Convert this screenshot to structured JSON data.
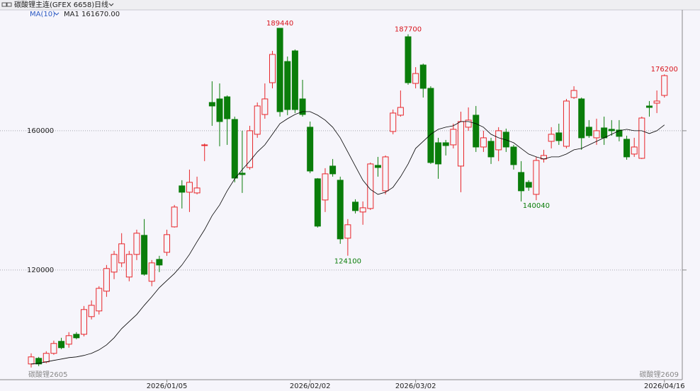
{
  "chart_data": {
    "type": "candlestick",
    "title": "碳酸锂主连(GFEX 6658)",
    "period": "日线",
    "indicator": "MA(10)",
    "indicator_value": "MA1 161670.00",
    "left_contract": "碳酸锂2605",
    "right_contract": "碳酸锂2609",
    "categories": [
      null,
      null,
      null,
      null,
      null,
      null,
      null,
      null,
      null,
      null,
      null,
      null,
      null,
      null,
      null,
      null,
      null,
      null,
      "2026/01/05",
      null,
      null,
      null,
      null,
      null,
      null,
      null,
      null,
      null,
      null,
      null,
      null,
      null,
      null,
      null,
      null,
      null,
      null,
      "2026/02/02",
      null,
      null,
      null,
      null,
      null,
      null,
      null,
      null,
      null,
      null,
      null,
      null,
      null,
      "2026/03/02",
      null,
      null,
      null,
      null,
      null,
      null,
      null,
      null,
      null,
      null,
      null,
      null,
      null,
      null,
      null,
      null,
      null,
      null,
      null,
      null,
      null,
      null,
      null,
      null,
      null,
      null,
      null,
      null,
      null,
      null,
      null,
      null,
      "2026/04/16"
    ],
    "open": [
      93010,
      94630,
      93620,
      96060,
      99510,
      98690,
      101540,
      101540,
      106610,
      108240,
      113920,
      119400,
      122040,
      117980,
      124480,
      129960,
      116760,
      123050,
      125080,
      132390,
      144170,
      142340,
      142140,
      155740,
      168120,
      169140,
      169740,
      163250,
      147820,
      149440,
      158990,
      164670,
      173800,
      189440,
      179890,
      182940,
      169140,
      161020,
      146200,
      140110,
      149850,
      145790,
      129140,
      139500,
      136660,
      137670,
      150050,
      142750,
      159800,
      164470,
      187000,
      173600,
      178880,
      172180,
      156550,
      156550,
      155940,
      149850,
      161020,
      164470,
      155330,
      156960,
      154520,
      159590,
      155330,
      148020,
      145180,
      141730,
      151880,
      156960,
      159390,
      155530,
      169540,
      169140,
      161020,
      157970,
      160810,
      160410,
      160200,
      157560,
      153300,
      152080,
      167110,
      167920,
      170150
    ],
    "high": [
      96060,
      95040,
      96660,
      99710,
      100520,
      102150,
      102150,
      109660,
      111280,
      115340,
      121430,
      125490,
      130570,
      125490,
      131580,
      134630,
      122850,
      124070,
      131580,
      138690,
      145790,
      148840,
      146810,
      156350,
      174210,
      173600,
      170150,
      164060,
      160000,
      161420,
      168120,
      173600,
      182940,
      189440,
      181320,
      183350,
      174620,
      162640,
      146400,
      149240,
      151880,
      146810,
      134630,
      140310,
      139700,
      150870,
      152490,
      152900,
      166090,
      171570,
      187700,
      178270,
      179290,
      172790,
      157970,
      157360,
      162030,
      165480,
      166700,
      167110,
      160000,
      157970,
      161020,
      160610,
      155940,
      151270,
      145790,
      152490,
      154520,
      161020,
      162030,
      169140,
      172790,
      169540,
      163050,
      163450,
      164060,
      163050,
      163050,
      158580,
      157970,
      164060,
      168530,
      171570,
      176200
    ],
    "low": [
      92000,
      92400,
      93210,
      95650,
      97270,
      97680,
      100120,
      100930,
      105800,
      107220,
      112300,
      117370,
      120820,
      116760,
      122850,
      118390,
      115340,
      119400,
      124070,
      132190,
      137670,
      136660,
      141730,
      151270,
      161420,
      155530,
      155940,
      145180,
      142140,
      148840,
      157970,
      163450,
      172180,
      164060,
      164470,
      165080,
      164060,
      147820,
      132190,
      136660,
      146810,
      127520,
      124100,
      136250,
      133000,
      137260,
      146810,
      141730,
      158990,
      164060,
      173200,
      172180,
      169540,
      150460,
      146200,
      152900,
      154930,
      142340,
      160000,
      153910,
      153910,
      150460,
      151270,
      153910,
      148840,
      139700,
      142750,
      140040,
      150870,
      154930,
      155940,
      154930,
      169140,
      154520,
      157970,
      155940,
      155940,
      158580,
      156960,
      151680,
      152490,
      151880,
      164060,
      165080,
      169540
    ],
    "close": [
      95040,
      93010,
      96060,
      98900,
      97680,
      101130,
      100520,
      108640,
      109860,
      114730,
      120420,
      124480,
      127520,
      124480,
      130570,
      118790,
      122040,
      121430,
      130160,
      138080,
      142340,
      145180,
      143560,
      155940,
      167110,
      162640,
      163450,
      146400,
      147410,
      160000,
      167110,
      169140,
      181920,
      165480,
      166090,
      166090,
      164670,
      148430,
      132600,
      147620,
      147620,
      128940,
      133000,
      137060,
      137870,
      150460,
      149440,
      152490,
      165080,
      166700,
      173800,
      176440,
      172180,
      150870,
      150460,
      155740,
      160410,
      162640,
      163050,
      155330,
      157970,
      152490,
      160000,
      155330,
      150260,
      142750,
      143760,
      151470,
      152900,
      158990,
      157160,
      168530,
      171570,
      157970,
      158580,
      160000,
      157970,
      160000,
      158380,
      152490,
      155330,
      163650,
      166700,
      168530,
      175830
    ],
    "ma": {
      "color": "#000000",
      "values": [
        93010,
        93210,
        93620,
        94030,
        94430,
        94840,
        95040,
        95450,
        96060,
        97070,
        98490,
        100520,
        103160,
        105190,
        107220,
        109860,
        112300,
        114930,
        116960,
        118990,
        121430,
        124480,
        128130,
        131580,
        135640,
        138690,
        142750,
        146200,
        148840,
        151270,
        153910,
        155940,
        158990,
        162030,
        163450,
        164670,
        165480,
        165480,
        164470,
        163050,
        161020,
        157970,
        153910,
        149850,
        145790,
        143150,
        141730,
        142340,
        143760,
        146810,
        150460,
        154930,
        156960,
        158990,
        160410,
        161020,
        161420,
        162640,
        162640,
        162030,
        161020,
        158990,
        157970,
        157360,
        156550,
        154930,
        153300,
        152490,
        151880,
        152490,
        152490,
        153300,
        154520,
        154930,
        155940,
        156960,
        157970,
        158990,
        160000,
        160410,
        160000,
        160000,
        159190,
        160000,
        161670
      ]
    },
    "high_labels": [
      null,
      null,
      null,
      null,
      null,
      null,
      null,
      null,
      null,
      null,
      null,
      null,
      null,
      null,
      null,
      null,
      null,
      null,
      null,
      null,
      null,
      null,
      null,
      null,
      null,
      null,
      null,
      null,
      null,
      null,
      null,
      null,
      null,
      "189440",
      null,
      null,
      null,
      null,
      null,
      null,
      null,
      null,
      null,
      null,
      null,
      null,
      null,
      null,
      null,
      null,
      "187700",
      null,
      null,
      null,
      null,
      null,
      null,
      null,
      null,
      null,
      null,
      null,
      null,
      null,
      null,
      null,
      null,
      null,
      null,
      null,
      null,
      null,
      null,
      null,
      null,
      null,
      null,
      null,
      null,
      null,
      null,
      null,
      null,
      null,
      "176200"
    ],
    "low_labels": [
      null,
      null,
      null,
      null,
      null,
      null,
      null,
      null,
      null,
      null,
      null,
      null,
      null,
      null,
      null,
      null,
      null,
      null,
      null,
      null,
      null,
      null,
      null,
      null,
      null,
      null,
      null,
      null,
      null,
      null,
      null,
      null,
      null,
      null,
      null,
      null,
      null,
      null,
      null,
      null,
      null,
      null,
      "124100",
      null,
      null,
      null,
      null,
      null,
      null,
      null,
      null,
      null,
      null,
      null,
      null,
      null,
      null,
      null,
      null,
      null,
      null,
      null,
      null,
      null,
      null,
      null,
      null,
      "140040",
      null,
      null,
      null,
      null,
      null,
      null,
      null,
      null,
      null,
      null,
      null,
      null,
      null,
      null,
      null,
      null,
      null
    ],
    "up_color": "#e8262a",
    "down_color": "#0a7d0a",
    "high_label_color": "#d8141c",
    "low_label_color": "#0a7d0a",
    "ylim": [
      88900,
      193900
    ],
    "yticks": [
      120000,
      160000
    ],
    "grid": true
  }
}
